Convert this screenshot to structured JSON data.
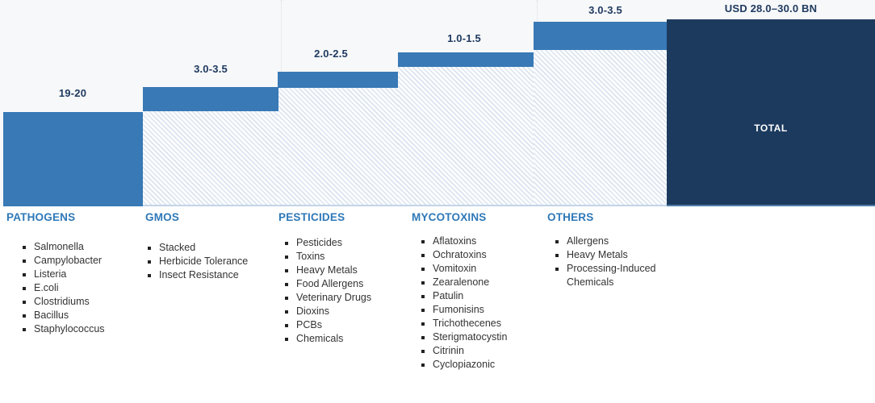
{
  "colors": {
    "bar_blue": "#3879b6",
    "total_navy": "#1c3a5e",
    "value_label_navy": "#1f3a60",
    "category_header_blue": "#2e78b8",
    "hatch_stripe": "#dbe5f0",
    "chart_background": "#f7f8f9",
    "list_text": "#333333"
  },
  "chart_data": {
    "type": "bar",
    "subtype": "waterfall",
    "unit": "USD Billion",
    "grid": false,
    "legend_position": "none",
    "categories": [
      "PATHOGENS",
      "GMOS",
      "PESTICIDES",
      "MYCOTOXINS",
      "OTHERS",
      "TOTAL"
    ],
    "value_labels": [
      "19-20",
      "3.0-3.5",
      "2.0-2.5",
      "1.0-1.5",
      "3.0-3.5",
      "USD 28.0–30.0 BN"
    ],
    "ranges": [
      [
        19,
        20
      ],
      [
        3.0,
        3.5
      ],
      [
        2.0,
        2.5
      ],
      [
        1.0,
        1.5
      ],
      [
        3.0,
        3.5
      ],
      [
        28.0,
        30.0
      ]
    ],
    "total_bar_label": "TOTAL"
  },
  "columns": [
    {
      "header": "PATHOGENS",
      "items": [
        "Salmonella",
        "Campylobacter",
        "Listeria",
        "E.coli",
        "Clostridiums",
        "Bacillus",
        "Staphylococcus"
      ]
    },
    {
      "header": "GMOS",
      "items": [
        "Stacked",
        "Herbicide Tolerance",
        "Insect Resistance"
      ]
    },
    {
      "header": "PESTICIDES",
      "items": [
        "Pesticides",
        "Toxins",
        "Heavy Metals",
        "Food Allergens",
        "Veterinary Drugs",
        "Dioxins",
        "PCBs",
        "Chemicals"
      ]
    },
    {
      "header": "MYCOTOXINS",
      "items": [
        "Aflatoxins",
        "Ochratoxins",
        "Vomitoxin",
        "Zearalenone",
        "Patulin",
        "Fumonisins",
        "Trichothecenes",
        "Sterigmatocystin",
        "Citrinin",
        "Cyclopiazonic"
      ]
    },
    {
      "header": "OTHERS",
      "items": [
        "Allergens",
        "Heavy Metals",
        "Processing-Induced Chemicals"
      ]
    }
  ]
}
